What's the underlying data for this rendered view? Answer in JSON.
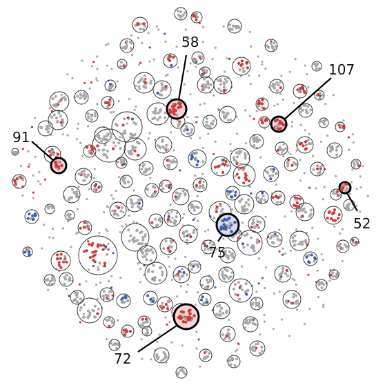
{
  "chart_data": {
    "type": "scatter",
    "title": "",
    "xlabel": "",
    "ylabel": "",
    "grid": false,
    "legend": "none",
    "colors": {
      "red": "#d03a3a",
      "blue": "#3c5fae",
      "gray": "#a8a8a8",
      "circle_stroke": "#222222",
      "circle_fill": "#ffffff"
    },
    "callouts": [
      {
        "label": "58"
      },
      {
        "label": "107"
      },
      {
        "label": "91"
      },
      {
        "label": "52"
      },
      {
        "label": "75"
      },
      {
        "label": "72"
      }
    ]
  }
}
